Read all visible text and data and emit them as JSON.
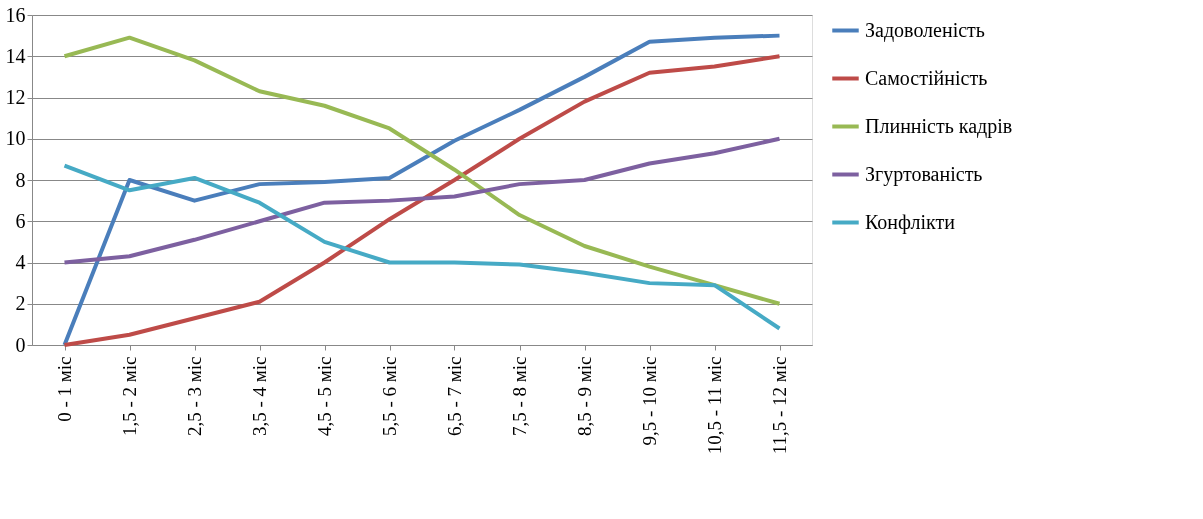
{
  "chart_data": {
    "type": "line",
    "categories": [
      "0 - 1 міс",
      "1,5 - 2 міс",
      "2,5 - 3 міс",
      "3,5 - 4 міс",
      "4,5 - 5 міс",
      "5,5 - 6 міс",
      "6,5 - 7 міс",
      "7,5 - 8 міс",
      "8,5 - 9 міс",
      "9,5 - 10 міс",
      "10,5 - 11  міс",
      "11,5 - 12 міс"
    ],
    "series": [
      {
        "name": "Задоволеність",
        "color": "#4a7ebb",
        "values": [
          0,
          8,
          7,
          7.8,
          7.9,
          8.1,
          9.9,
          11.4,
          13,
          14.7,
          14.9,
          15
        ]
      },
      {
        "name": "Самостійність",
        "color": "#be4b48",
        "values": [
          0,
          0.5,
          1.3,
          2.1,
          4,
          6.1,
          8,
          10,
          11.8,
          13.2,
          13.5,
          14
        ]
      },
      {
        "name": "Плинність кадрів",
        "color": "#98b954",
        "values": [
          14,
          14.9,
          13.8,
          12.3,
          11.6,
          10.5,
          8.5,
          6.3,
          4.8,
          3.8,
          2.9,
          2
        ]
      },
      {
        "name": "Згуртованість",
        "color": "#7d60a0",
        "values": [
          4,
          4.3,
          5.1,
          6,
          6.9,
          7,
          7.2,
          7.8,
          8,
          8.8,
          9.3,
          10
        ]
      },
      {
        "name": "Конфлікти",
        "color": "#46aac5",
        "values": [
          8.7,
          7.5,
          8.1,
          6.9,
          5,
          4,
          4,
          3.9,
          3.5,
          3,
          2.9,
          0.8
        ]
      }
    ],
    "ylim": [
      0,
      16
    ],
    "yticks": [
      0,
      2,
      4,
      6,
      8,
      10,
      12,
      14,
      16
    ],
    "grid": "y",
    "legend": "right",
    "marker": "none",
    "line_style": "solid"
  }
}
